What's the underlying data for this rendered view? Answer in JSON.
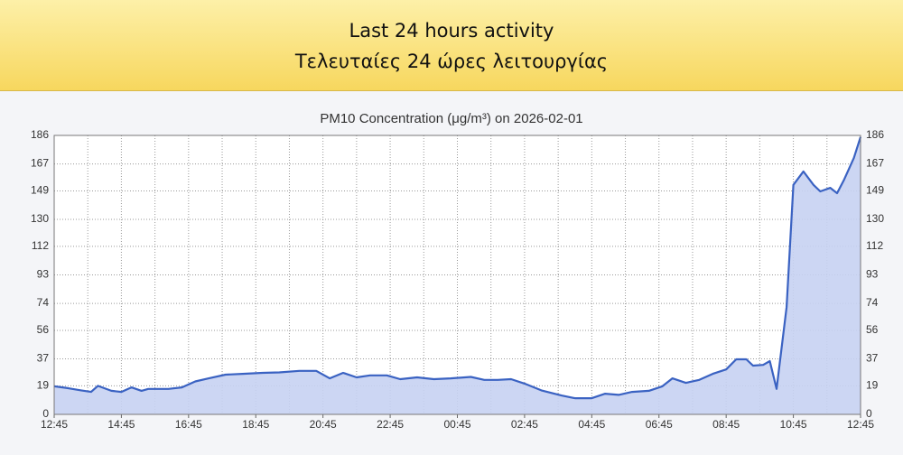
{
  "header": {
    "title_lines": [
      "Last 24 hours activity",
      "Τελευταίες 24 ώρες λειτουργίας"
    ]
  },
  "chart_data": {
    "type": "area",
    "title": "PM10 Concentration (μg/m³) on 2026-02-01",
    "color": "#3a62c2",
    "area_color": "#c6d2f2",
    "grid": true,
    "x": [
      0,
      0.4,
      0.8,
      1.1,
      1.3,
      1.7,
      2,
      2.3,
      2.6,
      2.8,
      3.4,
      3.8,
      4.2,
      4.6,
      5.1,
      5.6,
      6.2,
      6.7,
      7.3,
      7.8,
      8.2,
      8.6,
      9,
      9.4,
      9.9,
      10.3,
      10.8,
      11.3,
      11.8,
      12.4,
      12.8,
      13.2,
      13.6,
      14,
      14.5,
      15.1,
      15.5,
      16,
      16.4,
      16.8,
      17.2,
      17.7,
      18.1,
      18.4,
      18.8,
      19.2,
      19.6,
      20,
      20.3,
      20.6,
      20.8,
      21.1,
      21.3,
      21.5,
      21.8,
      22,
      22.3,
      22.6,
      22.8,
      23.1,
      23.3,
      23.5,
      23.8,
      24
    ],
    "values": [
      18.7,
      17.5,
      16,
      15,
      19,
      15.7,
      15,
      18,
      15.7,
      17,
      17,
      18,
      22,
      24,
      26.5,
      27,
      27.7,
      28,
      29,
      29,
      24,
      27.7,
      24.7,
      26,
      26,
      23.5,
      24.7,
      23.5,
      24,
      25,
      23,
      23,
      23.5,
      20.5,
      16,
      12.6,
      10.8,
      10.8,
      13.8,
      13,
      15,
      15.7,
      18.7,
      24,
      21,
      23,
      27,
      30,
      36.7,
      36.7,
      32.5,
      33,
      35.5,
      17,
      71.6,
      153,
      162,
      153,
      148.7,
      151,
      147.5,
      156,
      171,
      185
    ],
    "xlim": [
      0,
      24
    ],
    "xticks": [
      {
        "value": 0,
        "label": "12:45"
      },
      {
        "value": 2,
        "label": "14:45"
      },
      {
        "value": 4,
        "label": "16:45"
      },
      {
        "value": 6,
        "label": "18:45"
      },
      {
        "value": 8,
        "label": "20:45"
      },
      {
        "value": 10,
        "label": "22:45"
      },
      {
        "value": 12,
        "label": "00:45"
      },
      {
        "value": 14,
        "label": "02:45"
      },
      {
        "value": 16,
        "label": "04:45"
      },
      {
        "value": 18,
        "label": "06:45"
      },
      {
        "value": 20,
        "label": "08:45"
      },
      {
        "value": 22,
        "label": "10:45"
      },
      {
        "value": 24,
        "label": "12:45"
      }
    ],
    "ylim": [
      0,
      186
    ],
    "yticks": [
      0,
      19,
      37,
      56,
      74,
      93,
      112,
      130,
      149,
      167,
      186
    ]
  }
}
